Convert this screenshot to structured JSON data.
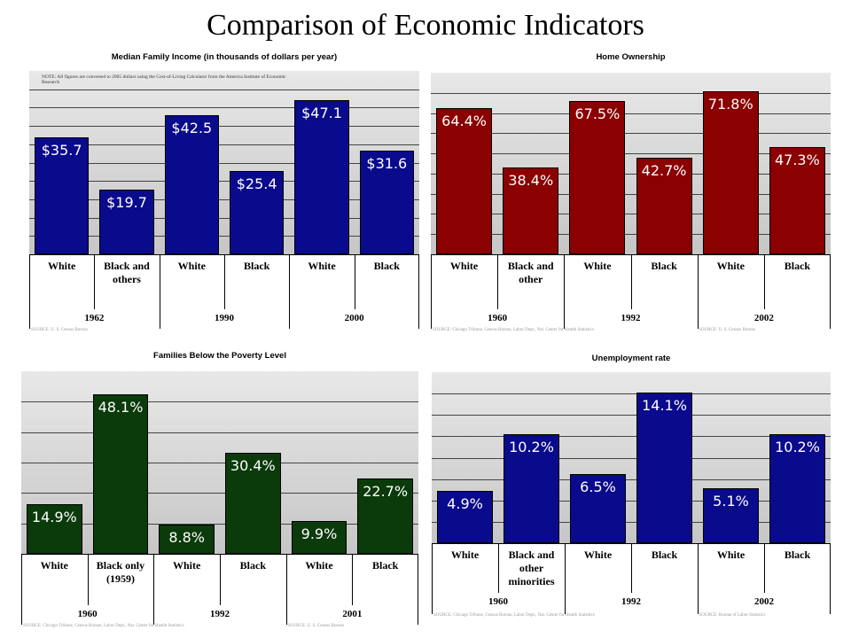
{
  "title": "Comparison of Economic Indicators",
  "chart_data": [
    {
      "type": "bar",
      "title": "Median Family Income (in thousands of dollars per year)",
      "note": "NOTE: All figures are converted to 2005 dollars using the Cost-of-Living Calculator from the America Institute of Economic Research",
      "categories": [
        "White",
        "Black and others",
        "White",
        "Black",
        "White",
        "Black"
      ],
      "groups": [
        "1962",
        "1990",
        "2000"
      ],
      "values": [
        35.7,
        19.7,
        42.5,
        25.4,
        47.1,
        31.6
      ],
      "labels": [
        "$35.7",
        "$19.7",
        "$42.5",
        "$25.4",
        "$47.1",
        "$31.6"
      ],
      "sources": [
        "SOURCE: U. S. Census Bureau"
      ],
      "ylim": [
        0,
        50
      ],
      "color": "#0a0a8c"
    },
    {
      "type": "bar",
      "title": "Home Ownership",
      "categories": [
        "White",
        "Black and other",
        "White",
        "Black",
        "White",
        "Black"
      ],
      "groups": [
        "1960",
        "1992",
        "2002"
      ],
      "values": [
        64.4,
        38.4,
        67.5,
        42.7,
        71.8,
        47.3
      ],
      "labels": [
        "64.4%",
        "38.4%",
        "67.5%",
        "42.7%",
        "71.8%",
        "47.3%"
      ],
      "sources": [
        "SOURCE: Chicago Tribune, Census Bureau, Labor Dept., Nat. Center for Health Statistics",
        "SOURCE: U. S. Census Bureau"
      ],
      "ylim": [
        0,
        80
      ],
      "color": "#8b0000"
    },
    {
      "type": "bar",
      "title": "Families Below the Poverty Level",
      "categories": [
        "White",
        "Black only (1959)",
        "White",
        "Black",
        "White",
        "Black"
      ],
      "groups": [
        "1960",
        "1992",
        "2001"
      ],
      "values": [
        14.9,
        48.1,
        8.8,
        30.4,
        9.9,
        22.7
      ],
      "labels": [
        "14.9%",
        "48.1%",
        "8.8%",
        "30.4%",
        "9.9%",
        "22.7%"
      ],
      "sources": [
        "SOURCE: Chicago Tribune, Census Bureau, Labor Dept., Nat. Center for Health Statistics",
        "SOURCE: U. S. Census Bureau"
      ],
      "ylim": [
        0,
        55
      ],
      "color": "#0b3a0b"
    },
    {
      "type": "bar",
      "title": "Unemployment rate",
      "categories": [
        "White",
        "Black and other minorities",
        "White",
        "Black",
        "White",
        "Black"
      ],
      "groups": [
        "1960",
        "1992",
        "2002"
      ],
      "values": [
        4.9,
        10.2,
        6.5,
        14.1,
        5.1,
        10.2
      ],
      "labels": [
        "4.9%",
        "10.2%",
        "6.5%",
        "14.1%",
        "5.1%",
        "10.2%"
      ],
      "sources": [
        "SOURCE: Chicago Tribune, Census Bureau, Labor Dept., Nat. Center for Health Statistics",
        "SOURCE: Bureau of Labor Statistics"
      ],
      "ylim": [
        0,
        16
      ],
      "color": "#0a0a8c"
    }
  ]
}
